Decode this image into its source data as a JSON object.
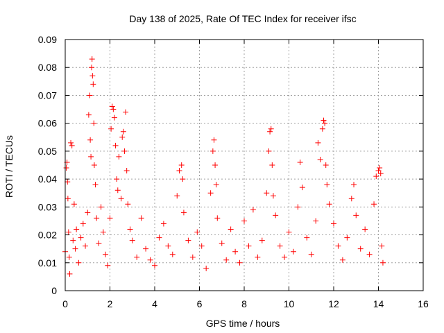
{
  "chart_data": {
    "type": "scatter",
    "title": "Day 138 of 2025, Rate Of TEC Index for receiver ifsc",
    "xlabel": "GPS time / hours",
    "ylabel": "ROTI / TECUs",
    "xlim": [
      0,
      16
    ],
    "ylim": [
      0,
      0.09
    ],
    "x_ticks": [
      "0",
      "2",
      "4",
      "6",
      "8",
      "10",
      "12",
      "14",
      "16"
    ],
    "y_ticks": [
      "0",
      "0.01",
      "0.02",
      "0.03",
      "0.04",
      "0.05",
      "0.06",
      "0.07",
      "0.08",
      "0.09"
    ],
    "grid": true,
    "marker": "+",
    "color": "#ff0000",
    "series": [
      {
        "points": [
          [
            0.0,
            0.014
          ],
          [
            0.05,
            0.044
          ],
          [
            0.08,
            0.046
          ],
          [
            0.1,
            0.039
          ],
          [
            0.12,
            0.033
          ],
          [
            0.15,
            0.021
          ],
          [
            0.18,
            0.012
          ],
          [
            0.2,
            0.006
          ],
          [
            0.25,
            0.053
          ],
          [
            0.3,
            0.052
          ],
          [
            0.35,
            0.018
          ],
          [
            0.4,
            0.031
          ],
          [
            0.45,
            0.015
          ],
          [
            0.5,
            0.022
          ],
          [
            0.6,
            0.01
          ],
          [
            0.7,
            0.019
          ],
          [
            0.8,
            0.024
          ],
          [
            0.9,
            0.016
          ],
          [
            1.0,
            0.028
          ],
          [
            1.05,
            0.063
          ],
          [
            1.1,
            0.07
          ],
          [
            1.12,
            0.054
          ],
          [
            1.15,
            0.048
          ],
          [
            1.18,
            0.08
          ],
          [
            1.2,
            0.083
          ],
          [
            1.22,
            0.077
          ],
          [
            1.25,
            0.074
          ],
          [
            1.28,
            0.06
          ],
          [
            1.3,
            0.045
          ],
          [
            1.35,
            0.038
          ],
          [
            1.4,
            0.026
          ],
          [
            1.5,
            0.017
          ],
          [
            1.6,
            0.03
          ],
          [
            1.7,
            0.021
          ],
          [
            1.8,
            0.013
          ],
          [
            1.9,
            0.009
          ],
          [
            2.0,
            0.026
          ],
          [
            2.05,
            0.058
          ],
          [
            2.1,
            0.066
          ],
          [
            2.15,
            0.065
          ],
          [
            2.2,
            0.062
          ],
          [
            2.25,
            0.052
          ],
          [
            2.3,
            0.04
          ],
          [
            2.35,
            0.036
          ],
          [
            2.4,
            0.048
          ],
          [
            2.5,
            0.033
          ],
          [
            2.55,
            0.055
          ],
          [
            2.6,
            0.057
          ],
          [
            2.65,
            0.05
          ],
          [
            2.7,
            0.064
          ],
          [
            2.75,
            0.043
          ],
          [
            2.8,
            0.031
          ],
          [
            2.9,
            0.022
          ],
          [
            3.0,
            0.018
          ],
          [
            3.2,
            0.012
          ],
          [
            3.4,
            0.026
          ],
          [
            3.6,
            0.015
          ],
          [
            3.8,
            0.011
          ],
          [
            4.0,
            0.009
          ],
          [
            4.2,
            0.019
          ],
          [
            4.4,
            0.024
          ],
          [
            4.6,
            0.016
          ],
          [
            4.8,
            0.013
          ],
          [
            5.0,
            0.034
          ],
          [
            5.1,
            0.043
          ],
          [
            5.2,
            0.045
          ],
          [
            5.25,
            0.04
          ],
          [
            5.3,
            0.028
          ],
          [
            5.5,
            0.018
          ],
          [
            5.7,
            0.012
          ],
          [
            5.9,
            0.021
          ],
          [
            6.1,
            0.016
          ],
          [
            6.3,
            0.008
          ],
          [
            6.5,
            0.035
          ],
          [
            6.6,
            0.05
          ],
          [
            6.65,
            0.054
          ],
          [
            6.7,
            0.045
          ],
          [
            6.75,
            0.038
          ],
          [
            6.8,
            0.026
          ],
          [
            7.0,
            0.017
          ],
          [
            7.2,
            0.011
          ],
          [
            7.4,
            0.022
          ],
          [
            7.6,
            0.014
          ],
          [
            7.8,
            0.01
          ],
          [
            8.0,
            0.025
          ],
          [
            8.2,
            0.016
          ],
          [
            8.4,
            0.029
          ],
          [
            8.6,
            0.012
          ],
          [
            8.8,
            0.018
          ],
          [
            9.0,
            0.035
          ],
          [
            9.1,
            0.05
          ],
          [
            9.15,
            0.057
          ],
          [
            9.2,
            0.058
          ],
          [
            9.25,
            0.045
          ],
          [
            9.3,
            0.034
          ],
          [
            9.4,
            0.027
          ],
          [
            9.6,
            0.016
          ],
          [
            9.8,
            0.012
          ],
          [
            10.0,
            0.021
          ],
          [
            10.2,
            0.014
          ],
          [
            10.4,
            0.03
          ],
          [
            10.5,
            0.046
          ],
          [
            10.6,
            0.037
          ],
          [
            10.8,
            0.019
          ],
          [
            11.0,
            0.013
          ],
          [
            11.2,
            0.025
          ],
          [
            11.3,
            0.053
          ],
          [
            11.4,
            0.047
          ],
          [
            11.5,
            0.058
          ],
          [
            11.55,
            0.061
          ],
          [
            11.6,
            0.06
          ],
          [
            11.65,
            0.045
          ],
          [
            11.7,
            0.038
          ],
          [
            11.8,
            0.031
          ],
          [
            12.0,
            0.024
          ],
          [
            12.2,
            0.016
          ],
          [
            12.4,
            0.011
          ],
          [
            12.6,
            0.019
          ],
          [
            12.8,
            0.033
          ],
          [
            12.9,
            0.038
          ],
          [
            13.0,
            0.027
          ],
          [
            13.2,
            0.015
          ],
          [
            13.4,
            0.022
          ],
          [
            13.6,
            0.013
          ],
          [
            13.8,
            0.031
          ],
          [
            13.9,
            0.041
          ],
          [
            14.0,
            0.043
          ],
          [
            14.05,
            0.044
          ],
          [
            14.1,
            0.042
          ],
          [
            14.15,
            0.016
          ],
          [
            14.2,
            0.01
          ]
        ]
      }
    ]
  }
}
